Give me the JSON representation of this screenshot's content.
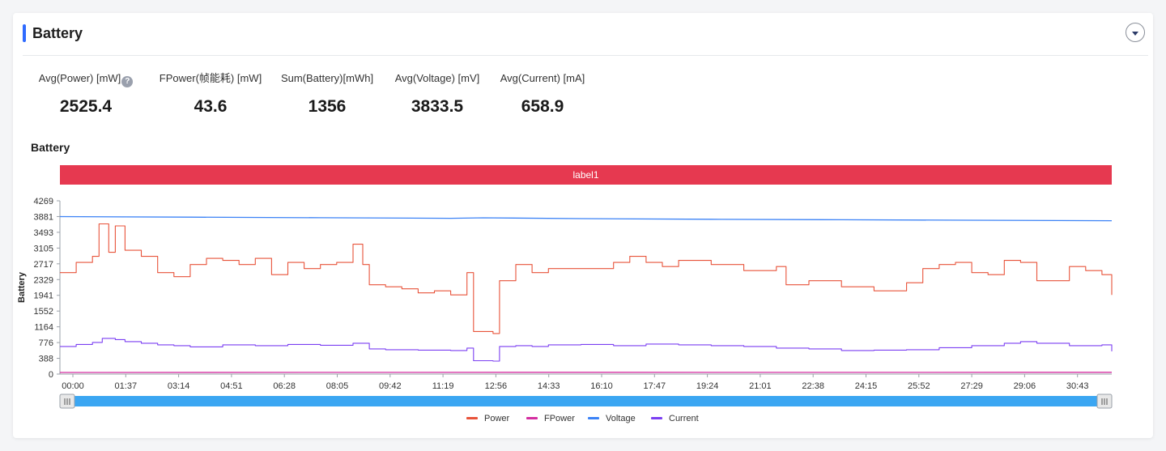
{
  "header": {
    "title": "Battery"
  },
  "metrics": [
    {
      "label": "Avg(Power) [mW]",
      "value": "2525.4",
      "has_help": true
    },
    {
      "label": "FPower(帧能耗) [mW]",
      "value": "43.6"
    },
    {
      "label": "Sum(Battery)[mWh]",
      "value": "1356"
    },
    {
      "label": "Avg(Voltage) [mV]",
      "value": "3833.5"
    },
    {
      "label": "Avg(Current) [mA]",
      "value": "658.9"
    }
  ],
  "section": {
    "title": "Battery"
  },
  "colors": {
    "accent": "#2f6bff",
    "label_band": "#e63950",
    "power": "#e8533a",
    "fpower": "#d42ea0",
    "voltage": "#3b82f6",
    "current": "#7b3ff2",
    "slider": "#3ba6f2"
  },
  "chart_data": {
    "type": "line",
    "title": "Battery",
    "ylabel": "Battery",
    "xlabel": "",
    "ylim": [
      0,
      4269
    ],
    "y_ticks": [
      "0",
      "388",
      "776",
      "1164",
      "1552",
      "1941",
      "2329",
      "2717",
      "3105",
      "3493",
      "3881",
      "4269"
    ],
    "x_ticks": [
      "00:00",
      "01:37",
      "03:14",
      "04:51",
      "06:28",
      "08:05",
      "09:42",
      "11:19",
      "12:56",
      "14:33",
      "16:10",
      "17:47",
      "19:24",
      "21:01",
      "22:38",
      "24:15",
      "25:52",
      "27:29",
      "29:06",
      "30:43"
    ],
    "x_range_minutes": [
      0,
      32.3
    ],
    "label_band": "label1",
    "legend": {
      "placement": "bottom-center"
    },
    "series": [
      {
        "name": "Power",
        "color": "#e8533a",
        "x": [
          0.0,
          0.5,
          1.0,
          1.2,
          1.5,
          1.7,
          2.0,
          2.5,
          3.0,
          3.5,
          4.0,
          4.5,
          5.0,
          5.5,
          6.0,
          6.5,
          7.0,
          7.5,
          8.0,
          8.5,
          9.0,
          9.3,
          9.5,
          10.0,
          10.5,
          11.0,
          11.5,
          12.0,
          12.5,
          12.7,
          13.0,
          13.3,
          13.5,
          14.0,
          14.5,
          15.0,
          16.0,
          17.0,
          17.5,
          18.0,
          18.5,
          19.0,
          20.0,
          21.0,
          22.0,
          22.3,
          23.0,
          24.0,
          25.0,
          26.0,
          26.5,
          27.0,
          27.5,
          28.0,
          28.5,
          29.0,
          29.5,
          30.0,
          31.0,
          31.5,
          32.0,
          32.3
        ],
        "y": [
          2500,
          2750,
          2900,
          3700,
          3000,
          3650,
          3050,
          2900,
          2500,
          2400,
          2700,
          2850,
          2800,
          2700,
          2850,
          2450,
          2750,
          2600,
          2700,
          2750,
          3200,
          2700,
          2200,
          2150,
          2100,
          2000,
          2050,
          1950,
          2500,
          1050,
          1050,
          1000,
          2300,
          2700,
          2500,
          2600,
          2600,
          2750,
          2900,
          2750,
          2650,
          2800,
          2700,
          2550,
          2650,
          2200,
          2300,
          2150,
          2050,
          2250,
          2600,
          2700,
          2750,
          2500,
          2450,
          2800,
          2750,
          2300,
          2650,
          2550,
          2450,
          1950
        ]
      },
      {
        "name": "FPower",
        "color": "#d42ea0",
        "x": [
          0.0,
          8.0,
          16.0,
          24.0,
          32.3
        ],
        "y": [
          40,
          42,
          44,
          42,
          44
        ]
      },
      {
        "name": "Voltage",
        "color": "#3b82f6",
        "x": [
          0.0,
          4.0,
          8.0,
          12.0,
          13.0,
          16.0,
          20.0,
          24.0,
          28.0,
          32.3
        ],
        "y": [
          3880,
          3866,
          3852,
          3838,
          3850,
          3830,
          3815,
          3802,
          3790,
          3778
        ]
      },
      {
        "name": "Current",
        "color": "#7b3ff2",
        "x": [
          0.0,
          0.5,
          1.0,
          1.3,
          1.7,
          2.0,
          2.5,
          3.0,
          3.5,
          4.0,
          5.0,
          6.0,
          7.0,
          8.0,
          9.0,
          9.5,
          10.0,
          11.0,
          12.0,
          12.5,
          12.7,
          13.0,
          13.3,
          13.5,
          14.0,
          14.5,
          15.0,
          16.0,
          17.0,
          18.0,
          19.0,
          20.0,
          21.0,
          22.0,
          23.0,
          24.0,
          25.0,
          26.0,
          27.0,
          28.0,
          29.0,
          29.5,
          30.0,
          31.0,
          32.0,
          32.3
        ],
        "y": [
          680,
          730,
          780,
          880,
          850,
          800,
          760,
          720,
          700,
          670,
          720,
          700,
          730,
          710,
          760,
          620,
          600,
          590,
          580,
          640,
          330,
          330,
          320,
          680,
          700,
          680,
          720,
          730,
          700,
          740,
          720,
          700,
          680,
          640,
          620,
          580,
          590,
          600,
          650,
          700,
          760,
          800,
          760,
          700,
          720,
          560
        ]
      }
    ]
  }
}
